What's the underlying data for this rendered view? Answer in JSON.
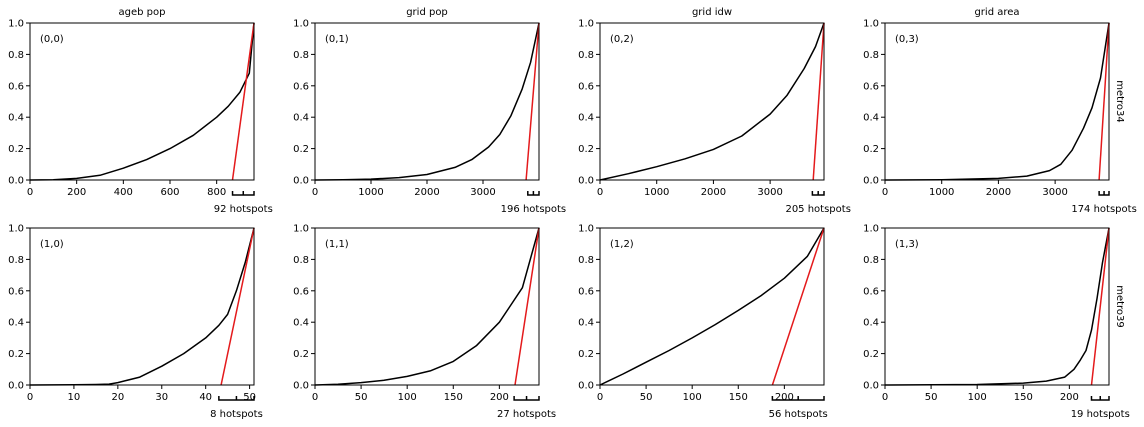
{
  "figure": {
    "col_titles": [
      "ageb pop",
      "grid pop",
      "grid idw",
      "grid area"
    ],
    "row_labels": [
      "metro34",
      "metro39"
    ],
    "colors": {
      "curve": "#000000",
      "tangent": "#e41a1c",
      "axes": "#000000"
    }
  },
  "chart_data": [
    {
      "type": "line",
      "panel": "(0,0)",
      "row": 0,
      "col": 0,
      "title": "ageb pop",
      "row_label": "",
      "xlim": [
        0,
        960
      ],
      "ylim": [
        0,
        1
      ],
      "xticks": [
        0,
        200,
        400,
        600,
        800
      ],
      "yticks": [
        0,
        0.2,
        0.4,
        0.6,
        0.8,
        1.0
      ],
      "hotspots_label": "92 hotspots",
      "bracket_x": [
        868,
        960
      ],
      "series": [
        {
          "role": "curve",
          "x": [
            0,
            100,
            200,
            300,
            400,
            500,
            600,
            700,
            800,
            850,
            900,
            940,
            960
          ],
          "y": [
            0,
            0.002,
            0.01,
            0.03,
            0.075,
            0.13,
            0.2,
            0.285,
            0.4,
            0.47,
            0.56,
            0.68,
            1.0
          ]
        },
        {
          "role": "tangent",
          "x": [
            868,
            960
          ],
          "y": [
            0,
            1.0
          ]
        }
      ]
    },
    {
      "type": "line",
      "panel": "(0,1)",
      "row": 0,
      "col": 1,
      "title": "grid pop",
      "row_label": "",
      "xlim": [
        0,
        4000
      ],
      "ylim": [
        0,
        1
      ],
      "xticks": [
        0,
        1000,
        2000,
        3000
      ],
      "yticks": [
        0,
        0.2,
        0.4,
        0.6,
        0.8,
        1.0
      ],
      "hotspots_label": "196 hotspots",
      "bracket_x": [
        3800,
        4000
      ],
      "series": [
        {
          "role": "curve",
          "x": [
            0,
            500,
            1000,
            1500,
            2000,
            2500,
            2800,
            3100,
            3300,
            3500,
            3700,
            3850,
            4000
          ],
          "y": [
            0,
            0.002,
            0.006,
            0.015,
            0.035,
            0.08,
            0.13,
            0.21,
            0.29,
            0.41,
            0.58,
            0.75,
            1.0
          ]
        },
        {
          "role": "tangent",
          "x": [
            3770,
            4000
          ],
          "y": [
            0,
            1.0
          ]
        }
      ]
    },
    {
      "type": "line",
      "panel": "(0,2)",
      "row": 0,
      "col": 2,
      "title": "grid idw",
      "row_label": "",
      "xlim": [
        0,
        3950
      ],
      "ylim": [
        0,
        1
      ],
      "xticks": [
        0,
        1000,
        2000,
        3000
      ],
      "yticks": [
        0,
        0.2,
        0.4,
        0.6,
        0.8,
        1.0
      ],
      "hotspots_label": "205 hotspots",
      "bracket_x": [
        3745,
        3950
      ],
      "series": [
        {
          "role": "curve",
          "x": [
            0,
            500,
            1000,
            1500,
            2000,
            2500,
            3000,
            3300,
            3600,
            3800,
            3950
          ],
          "y": [
            0,
            0.04,
            0.085,
            0.135,
            0.195,
            0.28,
            0.42,
            0.54,
            0.71,
            0.85,
            1.0
          ]
        },
        {
          "role": "tangent",
          "x": [
            3760,
            3950
          ],
          "y": [
            0,
            1.0
          ]
        }
      ]
    },
    {
      "type": "line",
      "panel": "(0,3)",
      "row": 0,
      "col": 3,
      "title": "grid area",
      "row_label": "metro34",
      "xlim": [
        0,
        3950
      ],
      "ylim": [
        0,
        1
      ],
      "xticks": [
        0,
        1000,
        2000,
        3000
      ],
      "yticks": [
        0,
        0.2,
        0.4,
        0.6,
        0.8,
        1.0
      ],
      "hotspots_label": "174 hotspots",
      "bracket_x": [
        3776,
        3950
      ],
      "series": [
        {
          "role": "curve",
          "x": [
            0,
            1000,
            2000,
            2500,
            2900,
            3100,
            3300,
            3500,
            3650,
            3800,
            3950
          ],
          "y": [
            0,
            0.002,
            0.01,
            0.025,
            0.06,
            0.1,
            0.19,
            0.33,
            0.46,
            0.65,
            1.0
          ]
        },
        {
          "role": "tangent",
          "x": [
            3776,
            3950
          ],
          "y": [
            0,
            1.0
          ]
        }
      ]
    },
    {
      "type": "line",
      "panel": "(1,0)",
      "row": 1,
      "col": 0,
      "title": "",
      "row_label": "",
      "xlim": [
        0,
        51
      ],
      "ylim": [
        0,
        1
      ],
      "xticks": [
        0,
        10,
        20,
        30,
        40,
        50
      ],
      "yticks": [
        0,
        0.2,
        0.4,
        0.6,
        0.8,
        1.0
      ],
      "hotspots_label": "8 hotspots",
      "bracket_x": [
        43,
        51
      ],
      "series": [
        {
          "role": "curve",
          "x": [
            0,
            10,
            15,
            18,
            20,
            25,
            30,
            35,
            40,
            43,
            45,
            47,
            49,
            51
          ],
          "y": [
            0,
            0.001,
            0.003,
            0.006,
            0.015,
            0.05,
            0.12,
            0.2,
            0.3,
            0.38,
            0.45,
            0.6,
            0.78,
            1.0
          ]
        },
        {
          "role": "tangent",
          "x": [
            43.5,
            51
          ],
          "y": [
            0,
            1.0
          ]
        }
      ]
    },
    {
      "type": "line",
      "panel": "(1,1)",
      "row": 1,
      "col": 1,
      "title": "",
      "row_label": "",
      "xlim": [
        0,
        243
      ],
      "ylim": [
        0,
        1
      ],
      "xticks": [
        0,
        50,
        100,
        150,
        200
      ],
      "yticks": [
        0,
        0.2,
        0.4,
        0.6,
        0.8,
        1.0
      ],
      "hotspots_label": "27 hotspots",
      "bracket_x": [
        216,
        243
      ],
      "series": [
        {
          "role": "curve",
          "x": [
            0,
            25,
            50,
            75,
            100,
            125,
            150,
            175,
            200,
            225,
            243
          ],
          "y": [
            0,
            0.005,
            0.015,
            0.03,
            0.055,
            0.09,
            0.15,
            0.25,
            0.4,
            0.62,
            1.0
          ]
        },
        {
          "role": "tangent",
          "x": [
            217,
            243
          ],
          "y": [
            0,
            1.0
          ]
        }
      ]
    },
    {
      "type": "line",
      "panel": "(1,2)",
      "row": 1,
      "col": 2,
      "title": "",
      "row_label": "",
      "xlim": [
        0,
        243
      ],
      "ylim": [
        0,
        1
      ],
      "xticks": [
        0,
        50,
        100,
        150,
        200
      ],
      "yticks": [
        0,
        0.2,
        0.4,
        0.6,
        0.8,
        1.0
      ],
      "hotspots_label": "56 hotspots",
      "bracket_x": [
        187,
        243
      ],
      "series": [
        {
          "role": "curve",
          "x": [
            0,
            25,
            50,
            75,
            100,
            125,
            150,
            175,
            200,
            225,
            243
          ],
          "y": [
            0,
            0.07,
            0.145,
            0.22,
            0.3,
            0.385,
            0.475,
            0.57,
            0.68,
            0.82,
            1.0
          ]
        },
        {
          "role": "tangent",
          "x": [
            187,
            243
          ],
          "y": [
            0,
            1.0
          ]
        }
      ]
    },
    {
      "type": "line",
      "panel": "(1,3)",
      "row": 1,
      "col": 3,
      "title": "",
      "row_label": "metro39",
      "xlim": [
        0,
        243
      ],
      "ylim": [
        0,
        1
      ],
      "xticks": [
        0,
        50,
        100,
        150,
        200
      ],
      "yticks": [
        0,
        0.2,
        0.4,
        0.6,
        0.8,
        1.0
      ],
      "hotspots_label": "19 hotspots",
      "bracket_x": [
        224,
        243
      ],
      "series": [
        {
          "role": "curve",
          "x": [
            0,
            100,
            150,
            175,
            195,
            205,
            212,
            218,
            224,
            230,
            236,
            243
          ],
          "y": [
            0,
            0.003,
            0.012,
            0.025,
            0.05,
            0.1,
            0.16,
            0.22,
            0.35,
            0.55,
            0.78,
            1.0
          ]
        },
        {
          "role": "tangent",
          "x": [
            224,
            243
          ],
          "y": [
            0,
            1.0
          ]
        }
      ]
    }
  ]
}
